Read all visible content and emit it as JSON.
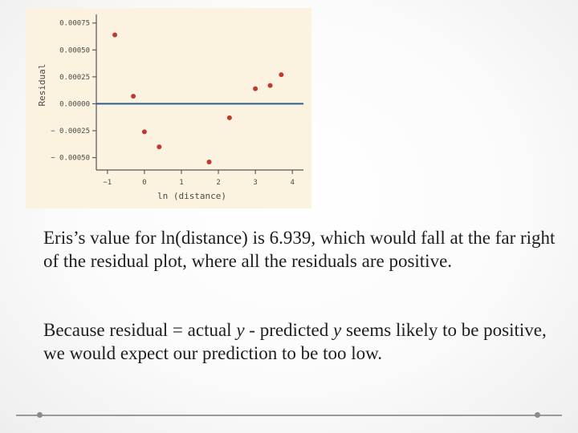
{
  "chart_data": {
    "type": "scatter",
    "title": "",
    "xlabel": "ln (distance)",
    "ylabel": "Residual",
    "x_ticks": [
      "−1",
      "0",
      "1",
      "2",
      "3",
      "4"
    ],
    "y_ticks": [
      "0.00075",
      "0.00050",
      "0.00025",
      "0.00000",
      "− 0.00025",
      "− 0.00050"
    ],
    "xlim": [
      -1.3,
      4.3
    ],
    "ylim": [
      -0.0006,
      0.0008
    ],
    "reference_line_y": 0,
    "colors": {
      "points": "#c0392b",
      "reference_line": "#2f5f8a",
      "panel": "#fbf2df"
    },
    "points": [
      {
        "x": -0.8,
        "y": 0.00064
      },
      {
        "x": -0.3,
        "y": 7e-05
      },
      {
        "x": 0.0,
        "y": -0.00026
      },
      {
        "x": 0.4,
        "y": -0.0004
      },
      {
        "x": 1.75,
        "y": -0.00054
      },
      {
        "x": 2.3,
        "y": -0.00013
      },
      {
        "x": 3.0,
        "y": 0.00014
      },
      {
        "x": 3.4,
        "y": 0.00017
      },
      {
        "x": 3.7,
        "y": 0.00027
      }
    ]
  },
  "text": {
    "para1": "Eris’s value for ln(distance) is 6.939, which would fall at the far right of the residual plot, where all the residuals are positive.",
    "para2_a": "Because residual = actual ",
    "para2_y1": "y",
    "para2_b": " - predicted ",
    "para2_y2": "y",
    "para2_c": " seems likely to be positive, we would expect our prediction to be too low."
  }
}
